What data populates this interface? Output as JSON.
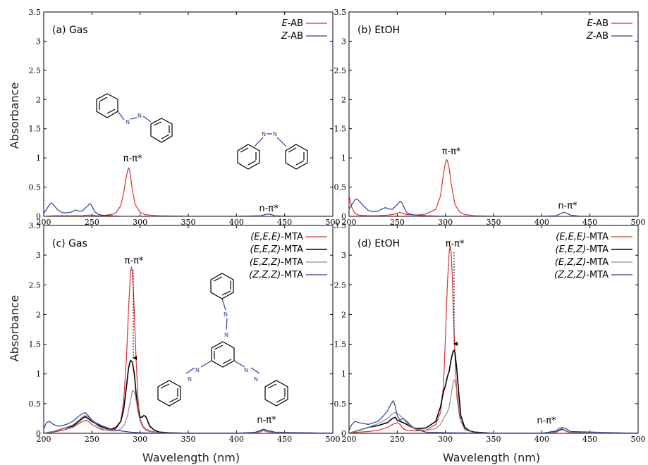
{
  "figure": {
    "xlabel": "Wavelength (nm)",
    "ylabel": "Absorbance",
    "colors": {
      "red": "#d9302f",
      "black": "#000000",
      "gray": "#8c8c8c",
      "blue": "#2e3d9a"
    }
  },
  "chart_data": [
    {
      "type": "line",
      "panel_label": "(a)  Gas",
      "xlim": [
        200,
        500
      ],
      "ylim": [
        0,
        3.5
      ],
      "xticks": [
        "200",
        "250",
        "300",
        "350",
        "400",
        "450",
        "500"
      ],
      "yticks": [
        "0",
        "0.5",
        "1",
        "1.5",
        "2",
        "2.5",
        "3",
        "3.5"
      ],
      "series": [
        {
          "name": "E-AB",
          "color": "red",
          "x": [
            200,
            210,
            220,
            230,
            240,
            245,
            250,
            255,
            260,
            265,
            270,
            275,
            280,
            283,
            285,
            287,
            288,
            289,
            290,
            292,
            295,
            300,
            305,
            310,
            320,
            350,
            400,
            430,
            435,
            440,
            500
          ],
          "y": [
            0,
            0.01,
            0.01,
            0.01,
            0.01,
            0.02,
            0.02,
            0.01,
            0.01,
            0.02,
            0.03,
            0.06,
            0.18,
            0.4,
            0.62,
            0.78,
            0.83,
            0.8,
            0.7,
            0.45,
            0.2,
            0.07,
            0.03,
            0.02,
            0.01,
            0,
            0,
            0,
            0,
            0,
            0
          ]
        },
        {
          "name": "Z-AB",
          "color": "blue",
          "x": [
            200,
            203,
            206,
            208,
            210,
            215,
            220,
            225,
            230,
            233,
            236,
            240,
            245,
            248,
            250,
            253,
            256,
            260,
            270,
            280,
            300,
            350,
            400,
            425,
            430,
            433,
            436,
            440,
            450,
            500
          ],
          "y": [
            0.05,
            0.12,
            0.2,
            0.23,
            0.2,
            0.1,
            0.06,
            0.06,
            0.08,
            0.11,
            0.09,
            0.09,
            0.17,
            0.22,
            0.18,
            0.08,
            0.04,
            0.02,
            0.01,
            0,
            0,
            0,
            0,
            0.01,
            0.03,
            0.04,
            0.03,
            0.01,
            0,
            0
          ]
        }
      ],
      "annotations": [
        "π-π*",
        "n-π*"
      ],
      "legend": "top-right"
    },
    {
      "type": "line",
      "panel_label": "(b)  EtOH",
      "xlim": [
        200,
        500
      ],
      "ylim": [
        0,
        3.5
      ],
      "xticks": [
        "200",
        "250",
        "300",
        "350",
        "400",
        "450",
        "500"
      ],
      "yticks": [
        "0",
        "0.5",
        "1",
        "1.5",
        "2",
        "2.5",
        "3",
        "3.5"
      ],
      "series": [
        {
          "name": "E-AB",
          "color": "red",
          "x": [
            200,
            203,
            206,
            210,
            220,
            230,
            240,
            245,
            250,
            253,
            255,
            260,
            270,
            280,
            290,
            295,
            298,
            300,
            301,
            302,
            304,
            306,
            310,
            315,
            320,
            330,
            350,
            400,
            500
          ],
          "y": [
            0.35,
            0.15,
            0.05,
            0.02,
            0.01,
            0.01,
            0.02,
            0.03,
            0.05,
            0.07,
            0.05,
            0.03,
            0.02,
            0.04,
            0.12,
            0.35,
            0.72,
            0.92,
            0.97,
            0.96,
            0.82,
            0.55,
            0.2,
            0.07,
            0.03,
            0.01,
            0,
            0,
            0
          ]
        },
        {
          "name": "Z-AB",
          "color": "blue",
          "x": [
            200,
            203,
            206,
            208,
            210,
            215,
            220,
            225,
            230,
            235,
            238,
            240,
            245,
            250,
            253,
            255,
            258,
            260,
            265,
            270,
            280,
            300,
            350,
            400,
            415,
            420,
            423,
            426,
            430,
            440,
            500
          ],
          "y": [
            0.12,
            0.2,
            0.28,
            0.3,
            0.27,
            0.18,
            0.1,
            0.08,
            0.09,
            0.13,
            0.15,
            0.13,
            0.12,
            0.2,
            0.26,
            0.23,
            0.12,
            0.06,
            0.03,
            0.02,
            0.01,
            0,
            0,
            0,
            0.01,
            0.05,
            0.07,
            0.05,
            0.02,
            0,
            0
          ]
        }
      ],
      "annotations": [
        "π-π*",
        "n-π*"
      ],
      "legend": "top-right"
    },
    {
      "type": "line",
      "panel_label": "(c)  Gas",
      "xlim": [
        200,
        500
      ],
      "ylim": [
        0,
        3.5
      ],
      "xticks": [
        "200",
        "250",
        "300",
        "350",
        "400",
        "450",
        "500"
      ],
      "yticks": [
        "0",
        "0.5",
        "1",
        "1.5",
        "2",
        "2.5",
        "3",
        "3.5"
      ],
      "series": [
        {
          "name": "(E,E,E)-MTA",
          "color": "red",
          "x": [
            200,
            210,
            220,
            230,
            240,
            245,
            250,
            260,
            270,
            275,
            280,
            283,
            286,
            288,
            290,
            291,
            292,
            293,
            294,
            296,
            298,
            300,
            303,
            306,
            310,
            320,
            350,
            400,
            500
          ],
          "y": [
            0,
            0.02,
            0.05,
            0.1,
            0.2,
            0.22,
            0.15,
            0.06,
            0.05,
            0.08,
            0.2,
            0.55,
            1.3,
            2.1,
            2.68,
            2.8,
            2.72,
            2.45,
            2.0,
            1.2,
            0.55,
            0.25,
            0.12,
            0.07,
            0.04,
            0.01,
            0,
            0,
            0
          ]
        },
        {
          "name": "(E,E,Z)-MTA",
          "color": "black",
          "x": [
            200,
            210,
            220,
            230,
            235,
            240,
            243,
            246,
            250,
            255,
            260,
            265,
            270,
            275,
            280,
            283,
            286,
            288,
            290,
            292,
            294,
            296,
            298,
            300,
            302,
            304,
            306,
            308,
            310,
            315,
            320,
            330,
            350,
            400,
            420,
            425,
            428,
            432,
            440,
            500
          ],
          "y": [
            0,
            0.03,
            0.08,
            0.12,
            0.18,
            0.25,
            0.28,
            0.25,
            0.2,
            0.15,
            0.11,
            0.08,
            0.07,
            0.1,
            0.2,
            0.4,
            0.8,
            1.1,
            1.23,
            1.2,
            1.0,
            0.65,
            0.38,
            0.27,
            0.27,
            0.3,
            0.28,
            0.2,
            0.12,
            0.05,
            0.02,
            0.01,
            0,
            0,
            0.01,
            0.03,
            0.05,
            0.03,
            0.01,
            0
          ]
        },
        {
          "name": "(E,Z,Z)-MTA",
          "color": "gray",
          "x": [
            200,
            210,
            220,
            230,
            235,
            240,
            243,
            246,
            250,
            255,
            260,
            265,
            270,
            275,
            280,
            284,
            287,
            290,
            292,
            294,
            296,
            298,
            300,
            303,
            306,
            310,
            320,
            350,
            400,
            420,
            425,
            428,
            432,
            440,
            500
          ],
          "y": [
            0,
            0.03,
            0.08,
            0.14,
            0.2,
            0.27,
            0.3,
            0.28,
            0.22,
            0.14,
            0.08,
            0.05,
            0.04,
            0.04,
            0.07,
            0.15,
            0.3,
            0.55,
            0.72,
            0.7,
            0.55,
            0.35,
            0.2,
            0.1,
            0.05,
            0.03,
            0.01,
            0,
            0,
            0.01,
            0.03,
            0.05,
            0.03,
            0.01,
            0
          ]
        },
        {
          "name": "(Z,Z,Z)-MTA",
          "color": "blue",
          "x": [
            200,
            203,
            206,
            210,
            215,
            220,
            225,
            230,
            235,
            240,
            243,
            246,
            250,
            255,
            260,
            265,
            270,
            280,
            290,
            300,
            320,
            350,
            400,
            420,
            425,
            428,
            432,
            440,
            500
          ],
          "y": [
            0.08,
            0.18,
            0.2,
            0.15,
            0.12,
            0.13,
            0.16,
            0.2,
            0.27,
            0.33,
            0.35,
            0.3,
            0.22,
            0.17,
            0.13,
            0.1,
            0.07,
            0.04,
            0.02,
            0.01,
            0,
            0,
            0,
            0.02,
            0.05,
            0.07,
            0.05,
            0.02,
            0
          ]
        }
      ],
      "annotations": [
        "π-π*",
        "n-π*"
      ],
      "legend": "top-right"
    },
    {
      "type": "line",
      "panel_label": "(d)  EtOH",
      "xlim": [
        200,
        500
      ],
      "ylim": [
        0,
        3.5
      ],
      "xticks": [
        "200",
        "250",
        "300",
        "350",
        "400",
        "450",
        "500"
      ],
      "yticks": [
        "0",
        "0.5",
        "1",
        "1.5",
        "2",
        "2.5",
        "3",
        "3.5"
      ],
      "series": [
        {
          "name": "(E,E,E)-MTA",
          "color": "red",
          "x": [
            200,
            210,
            220,
            230,
            240,
            245,
            250,
            253,
            256,
            260,
            270,
            280,
            290,
            295,
            298,
            300,
            302,
            304,
            305,
            306,
            307,
            308,
            310,
            312,
            315,
            320,
            330,
            350,
            400,
            500
          ],
          "y": [
            0,
            0.02,
            0.03,
            0.05,
            0.1,
            0.15,
            0.18,
            0.15,
            0.08,
            0.05,
            0.04,
            0.05,
            0.15,
            0.35,
            0.8,
            1.6,
            2.5,
            3.05,
            3.15,
            3.05,
            2.7,
            2.2,
            1.3,
            0.6,
            0.25,
            0.08,
            0.02,
            0,
            0,
            0
          ]
        },
        {
          "name": "(E,E,Z)-MTA",
          "color": "black",
          "x": [
            200,
            210,
            220,
            230,
            240,
            245,
            248,
            250,
            253,
            256,
            260,
            265,
            270,
            280,
            290,
            295,
            298,
            300,
            302,
            304,
            306,
            308,
            309,
            310,
            312,
            314,
            316,
            320,
            325,
            330,
            350,
            400,
            415,
            418,
            421,
            425,
            430,
            500
          ],
          "y": [
            0,
            0.05,
            0.1,
            0.13,
            0.18,
            0.25,
            0.27,
            0.22,
            0.2,
            0.18,
            0.15,
            0.1,
            0.08,
            0.09,
            0.2,
            0.45,
            0.7,
            0.8,
            0.95,
            1.05,
            1.25,
            1.38,
            1.4,
            1.35,
            1.05,
            0.65,
            0.3,
            0.1,
            0.04,
            0.02,
            0,
            0,
            0.02,
            0.05,
            0.07,
            0.04,
            0.01,
            0
          ]
        },
        {
          "name": "(E,Z,Z)-MTA",
          "color": "gray",
          "x": [
            200,
            210,
            220,
            230,
            240,
            245,
            248,
            250,
            253,
            256,
            260,
            265,
            270,
            280,
            290,
            295,
            298,
            300,
            302,
            304,
            306,
            308,
            309,
            310,
            312,
            314,
            316,
            320,
            330,
            350,
            400,
            415,
            418,
            421,
            425,
            430,
            500
          ],
          "y": [
            0,
            0.05,
            0.1,
            0.16,
            0.25,
            0.33,
            0.35,
            0.33,
            0.3,
            0.25,
            0.18,
            0.1,
            0.07,
            0.05,
            0.08,
            0.15,
            0.25,
            0.3,
            0.35,
            0.45,
            0.65,
            0.85,
            0.9,
            0.88,
            0.7,
            0.45,
            0.2,
            0.06,
            0.01,
            0,
            0,
            0.02,
            0.04,
            0.06,
            0.04,
            0.01,
            0
          ]
        },
        {
          "name": "(Z,Z,Z)-MTA",
          "color": "blue",
          "x": [
            200,
            203,
            206,
            210,
            220,
            230,
            235,
            240,
            243,
            246,
            248,
            250,
            253,
            256,
            260,
            265,
            270,
            280,
            300,
            350,
            400,
            415,
            418,
            421,
            425,
            430,
            500
          ],
          "y": [
            0.05,
            0.15,
            0.2,
            0.18,
            0.15,
            0.2,
            0.28,
            0.38,
            0.48,
            0.55,
            0.45,
            0.3,
            0.22,
            0.25,
            0.2,
            0.12,
            0.06,
            0.02,
            0.01,
            0,
            0,
            0.04,
            0.08,
            0.1,
            0.08,
            0.03,
            0
          ]
        }
      ],
      "annotations": [
        "π-π*",
        "n-π*"
      ],
      "legend": "top-right"
    }
  ]
}
